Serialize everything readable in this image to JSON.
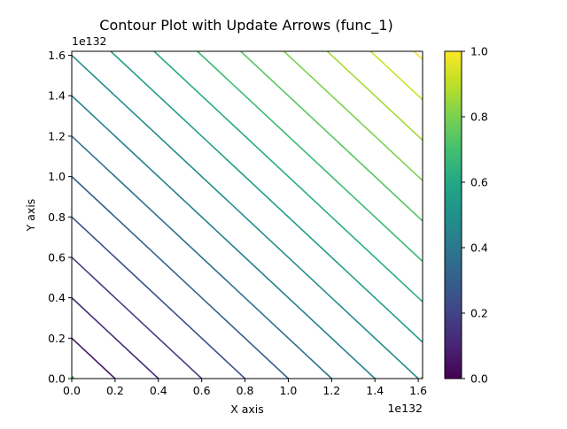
{
  "chart_data": {
    "type": "contour",
    "title": "Contour Plot with Update Arrows (func_1)",
    "xlabel": "X axis",
    "ylabel": "Y axis",
    "x_offset_label": "1e132",
    "y_offset_label": "1e132",
    "xlim": [
      0.0,
      1.62
    ],
    "ylim": [
      0.0,
      1.62
    ],
    "x_ticks": [
      0.0,
      0.2,
      0.4,
      0.6,
      0.8,
      1.0,
      1.2,
      1.4,
      1.6
    ],
    "x_tick_labels": [
      "0.0",
      "0.2",
      "0.4",
      "0.6",
      "0.8",
      "1.0",
      "1.2",
      "1.4",
      "1.6"
    ],
    "y_ticks": [
      0.0,
      0.2,
      0.4,
      0.6,
      0.8,
      1.0,
      1.2,
      1.4,
      1.6
    ],
    "y_tick_labels": [
      "0.0",
      "0.2",
      "0.4",
      "0.6",
      "0.8",
      "1.0",
      "1.2",
      "1.4",
      "1.6"
    ],
    "contour_levels": [
      {
        "sum": 0.2,
        "value": 0.0617
      },
      {
        "sum": 0.4,
        "value": 0.1235
      },
      {
        "sum": 0.6,
        "value": 0.1852
      },
      {
        "sum": 0.8,
        "value": 0.2469
      },
      {
        "sum": 1.0,
        "value": 0.3086
      },
      {
        "sum": 1.2,
        "value": 0.3704
      },
      {
        "sum": 1.4,
        "value": 0.4321
      },
      {
        "sum": 1.6,
        "value": 0.4938
      },
      {
        "sum": 1.8,
        "value": 0.5556
      },
      {
        "sum": 2.0,
        "value": 0.6173
      },
      {
        "sum": 2.2,
        "value": 0.679
      },
      {
        "sum": 2.4,
        "value": 0.7407
      },
      {
        "sum": 2.6,
        "value": 0.8025
      },
      {
        "sum": 2.8,
        "value": 0.8642
      },
      {
        "sum": 3.0,
        "value": 0.9259
      },
      {
        "sum": 3.2,
        "value": 0.9877
      }
    ],
    "colorbar": {
      "colormap": "viridis",
      "range": [
        0.0,
        1.0
      ],
      "ticks": [
        0.0,
        0.2,
        0.4,
        0.6,
        0.8,
        1.0
      ],
      "tick_labels": [
        "0.0",
        "0.2",
        "0.4",
        "0.6",
        "0.8",
        "1.0"
      ]
    },
    "grid": false
  }
}
